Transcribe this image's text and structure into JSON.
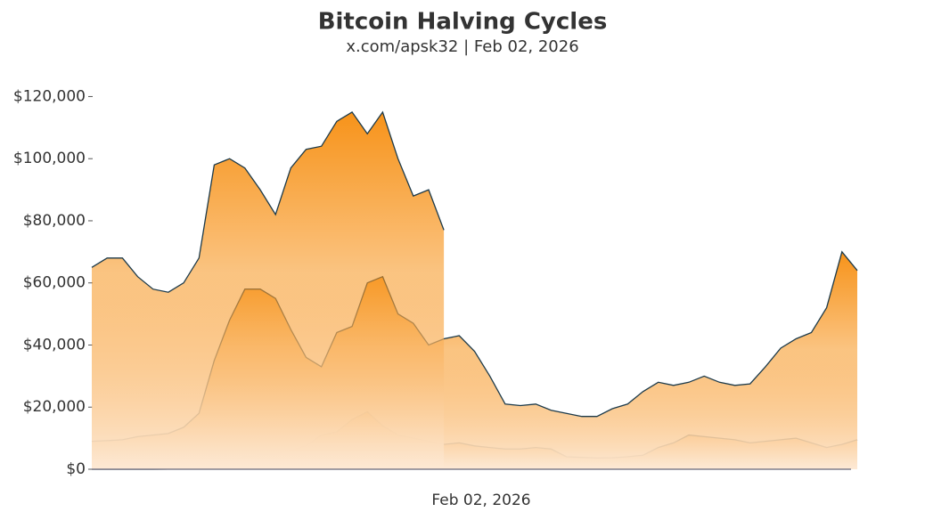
{
  "chart_data": {
    "type": "area",
    "title": "Bitcoin Halving Cycles",
    "subtitle": "x.com/apsk32 | Feb 02, 2026",
    "xlabel": "Feb 02, 2026",
    "ylim": [
      0,
      125000
    ],
    "yticks": [
      {
        "value": 0,
        "label": "$0"
      },
      {
        "value": 20000,
        "label": "$20,000"
      },
      {
        "value": 40000,
        "label": "$40,000"
      },
      {
        "value": 60000,
        "label": "$60,000"
      },
      {
        "value": 80000,
        "label": "$80,000"
      },
      {
        "value": 100000,
        "label": "$100,000"
      },
      {
        "value": 120000,
        "label": "$120,000"
      }
    ],
    "line_color": "#1c3a4a",
    "color": "#f7931a",
    "band_color": "#fde9d5",
    "series": [
      {
        "values": [
          12,
          12,
          13,
          13,
          14,
          20,
          50,
          90,
          110,
          130,
          200,
          250,
          300,
          600,
          800,
          1000,
          900,
          700,
          600,
          500,
          450,
          450,
          400,
          350,
          300,
          250,
          230,
          240,
          250,
          260,
          350,
          400,
          420,
          450,
          500,
          600,
          600,
          650,
          700,
          900,
          1000,
          1100,
          1000,
          900,
          800,
          700,
          650,
          600,
          600,
          650,
          700
        ]
      },
      {
        "values": [
          650,
          650,
          700,
          750,
          900,
          1000,
          1200,
          1700,
          2500,
          2700,
          4000,
          4500,
          5000,
          6000,
          7500,
          11000,
          12000,
          16000,
          18500,
          14000,
          11000,
          10000,
          9000,
          8000,
          8500,
          7500,
          7000,
          6500,
          6500,
          7000,
          6500,
          4000,
          3800,
          3600,
          3700,
          4000,
          4500,
          7000,
          8500,
          11000,
          10500,
          10000,
          9500,
          8500,
          9000,
          9500,
          10000,
          8500,
          7000,
          8000,
          9500
        ]
      },
      {
        "values": [
          9000,
          9200,
          9500,
          10500,
          11000,
          11500,
          13500,
          18000,
          35000,
          48000,
          58000,
          58000,
          55000,
          45000,
          36000,
          33000,
          44000,
          46000,
          60000,
          62000,
          50000,
          47000,
          40000,
          42000,
          43000,
          38000,
          30000,
          21000,
          20500,
          21000,
          19000,
          18000,
          17000,
          17000,
          19500,
          21000,
          25000,
          28000,
          27000,
          28000,
          30000,
          28000,
          27000,
          27500,
          33000,
          39000,
          42000,
          44000,
          52000,
          70000,
          64000
        ]
      },
      {
        "values": [
          65000,
          68000,
          68000,
          62000,
          58000,
          57000,
          60000,
          68000,
          98000,
          100000,
          97000,
          90000,
          82000,
          97000,
          103000,
          104000,
          112000,
          115000,
          108000,
          115000,
          100000,
          88000,
          90000,
          77000
        ]
      }
    ]
  }
}
